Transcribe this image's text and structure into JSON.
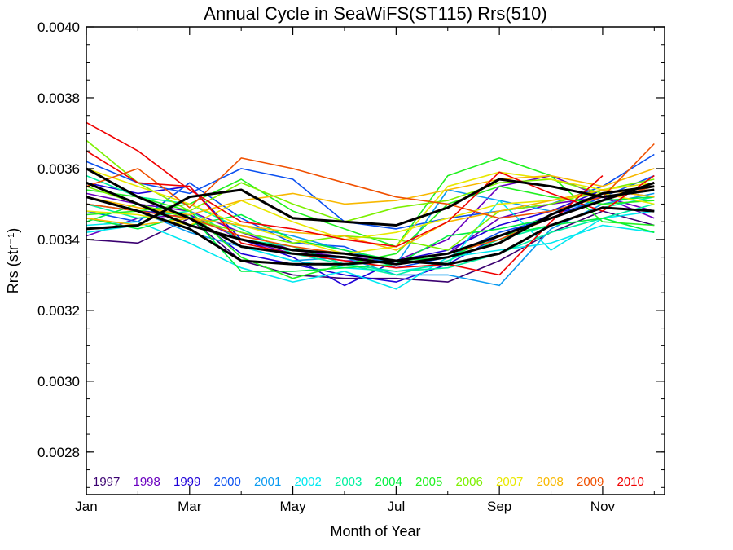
{
  "chart_data": {
    "type": "line",
    "title": "Annual Cycle in SeaWiFS(ST115) Rrs(510)",
    "xlabel": "Month of Year",
    "ylabel": "Rrs (str⁻¹)",
    "xlim": [
      1,
      12
    ],
    "ylim": [
      0.00268,
      0.004
    ],
    "x": [
      1,
      2,
      3,
      4,
      5,
      6,
      7,
      8,
      9,
      10,
      11,
      12
    ],
    "xticks": [
      {
        "value": 1,
        "label": "Jan"
      },
      {
        "value": 3,
        "label": "Mar"
      },
      {
        "value": 5,
        "label": "May"
      },
      {
        "value": 7,
        "label": "Jul"
      },
      {
        "value": 9,
        "label": "Sep"
      },
      {
        "value": 11,
        "label": "Nov"
      }
    ],
    "yticks": [
      {
        "value": 0.0028,
        "label": "0.0028"
      },
      {
        "value": 0.003,
        "label": "0.0030"
      },
      {
        "value": 0.0032,
        "label": "0.0032"
      },
      {
        "value": 0.0034,
        "label": "0.0034"
      },
      {
        "value": 0.0036,
        "label": "0.0036"
      },
      {
        "value": 0.0038,
        "label": "0.0038"
      },
      {
        "value": 0.004,
        "label": "0.0040"
      }
    ],
    "grid": false,
    "legend_position": "bottom",
    "series": [
      {
        "name": "1997",
        "color": "#3a0070",
        "lines": [
          [
            0.0034,
            0.00339,
            0.00346,
            0.00334,
            0.0033,
            0.00329,
            0.00329,
            0.00328,
            0.00334,
            0.00342,
            0.00348,
            0.00344
          ]
        ]
      },
      {
        "name": "1998",
        "color": "#6a00c0",
        "lines": [
          [
            0.00341,
            0.00346,
            0.00347,
            0.0034,
            0.00336,
            0.00334,
            0.00334,
            0.00336,
            0.00346,
            0.0035,
            0.00352,
            0.00346
          ],
          [
            0.00353,
            0.0035,
            0.00348,
            0.00342,
            0.00337,
            0.00335,
            0.00334,
            0.0034,
            0.00355,
            0.00358,
            0.00352,
            0.00348
          ]
        ]
      },
      {
        "name": "1999",
        "color": "#1e00d8",
        "lines": [
          [
            0.00356,
            0.00353,
            0.00355,
            0.0034,
            0.00335,
            0.00327,
            0.00334,
            0.00337,
            0.00344,
            0.00348,
            0.00354,
            0.00352
          ],
          [
            0.00352,
            0.00348,
            0.00347,
            0.00336,
            0.00333,
            0.0033,
            0.00328,
            0.00333,
            0.00341,
            0.00347,
            0.00351,
            0.00356
          ]
        ]
      },
      {
        "name": "2000",
        "color": "#0a50f0",
        "lines": [
          [
            0.00362,
            0.00356,
            0.00353,
            0.0036,
            0.00357,
            0.00345,
            0.00343,
            0.00346,
            0.00348,
            0.0035,
            0.00355,
            0.00364
          ],
          [
            0.00348,
            0.00345,
            0.00356,
            0.00346,
            0.00339,
            0.00338,
            0.00332,
            0.00335,
            0.00342,
            0.00346,
            0.00352,
            0.00358
          ]
        ]
      },
      {
        "name": "2001",
        "color": "#0a9af0",
        "lines": [
          [
            0.00356,
            0.0035,
            0.00346,
            0.00344,
            0.00341,
            0.00337,
            0.00333,
            0.00354,
            0.00351,
            0.00348,
            0.00351,
            0.00355
          ],
          [
            0.0035,
            0.00348,
            0.00342,
            0.00338,
            0.00334,
            0.00335,
            0.0033,
            0.0033,
            0.00327,
            0.00343,
            0.0035,
            0.00353
          ]
        ]
      },
      {
        "name": "2002",
        "color": "#00e8f0",
        "lines": [
          [
            0.00344,
            0.00345,
            0.00339,
            0.00332,
            0.00328,
            0.00331,
            0.00326,
            0.00335,
            0.00337,
            0.00339,
            0.00344,
            0.00342
          ],
          [
            0.00342,
            0.00344,
            0.00346,
            0.00338,
            0.00334,
            0.00332,
            0.00331,
            0.00333,
            0.00351,
            0.00337,
            0.00346,
            0.00348
          ]
        ]
      },
      {
        "name": "2003",
        "color": "#00f0a0",
        "lines": [
          [
            0.00358,
            0.00352,
            0.0035,
            0.00343,
            0.00336,
            0.00333,
            0.0033,
            0.00334,
            0.0034,
            0.00344,
            0.00349,
            0.00352
          ],
          [
            0.0035,
            0.00346,
            0.00348,
            0.0034,
            0.00338,
            0.00333,
            0.00331,
            0.00332,
            0.00336,
            0.00342,
            0.00346,
            0.0035
          ]
        ]
      },
      {
        "name": "2004",
        "color": "#00f040",
        "lines": [
          [
            0.00346,
            0.00343,
            0.00347,
            0.00331,
            0.00331,
            0.00332,
            0.00333,
            0.00341,
            0.00343,
            0.00346,
            0.00351,
            0.00352
          ],
          [
            0.00345,
            0.0035,
            0.00344,
            0.00347,
            0.0034,
            0.00337,
            0.00334,
            0.00335,
            0.00341,
            0.00344,
            0.00346,
            0.00342
          ]
        ]
      },
      {
        "name": "2005",
        "color": "#20f020",
        "lines": [
          [
            0.00347,
            0.00348,
            0.0035,
            0.00357,
            0.00348,
            0.00343,
            0.00338,
            0.00358,
            0.00363,
            0.00358,
            0.00345,
            0.00344
          ],
          [
            0.00354,
            0.00352,
            0.00348,
            0.00335,
            0.00329,
            0.00333,
            0.00336,
            0.0035,
            0.00355,
            0.00352,
            0.0035,
            0.00351
          ]
        ]
      },
      {
        "name": "2006",
        "color": "#7cf000",
        "lines": [
          [
            0.00368,
            0.00356,
            0.00348,
            0.00356,
            0.0035,
            0.00345,
            0.00349,
            0.00351,
            0.00356,
            0.00357,
            0.00353,
            0.00355
          ],
          [
            0.00355,
            0.0035,
            0.00346,
            0.00342,
            0.00339,
            0.00341,
            0.0034,
            0.00337,
            0.00348,
            0.0035,
            0.00354,
            0.00357
          ]
        ]
      },
      {
        "name": "2007",
        "color": "#e8e800",
        "lines": [
          [
            0.0036,
            0.00355,
            0.0035,
            0.00344,
            0.0034,
            0.00336,
            0.00338,
            0.00355,
            0.00359,
            0.00357,
            0.00354,
            0.00356
          ],
          [
            0.00348,
            0.00347,
            0.00344,
            0.00351,
            0.00345,
            0.0034,
            0.00342,
            0.00346,
            0.0035,
            0.00351,
            0.00353,
            0.0035
          ]
        ]
      },
      {
        "name": "2008",
        "color": "#f8b800",
        "lines": [
          [
            0.00352,
            0.00349,
            0.00347,
            0.00351,
            0.00353,
            0.0035,
            0.00351,
            0.00354,
            0.00357,
            0.00358,
            0.00355,
            0.0036
          ],
          [
            0.00346,
            0.00344,
            0.00346,
            0.00344,
            0.00342,
            0.00341,
            0.00337,
            0.00345,
            0.00348,
            0.00351,
            0.00354,
            0.00352
          ]
        ]
      },
      {
        "name": "2009",
        "color": "#f05000",
        "lines": [
          [
            0.00355,
            0.0036,
            0.00349,
            0.00363,
            0.0036,
            0.00356,
            0.00352,
            0.0035,
            0.00346,
            0.00348,
            0.00352,
            0.00367
          ],
          [
            0.0035,
            0.00348,
            0.00346,
            0.00341,
            0.00338,
            0.00336,
            0.00334,
            0.00336,
            0.0034,
            0.00346,
            0.00351,
            0.00355
          ]
        ]
      },
      {
        "name": "2010",
        "color": "#f00000",
        "lines": [
          [
            0.00373,
            0.00365,
            0.00354,
            0.00345,
            0.00343,
            0.0034,
            0.00338,
            0.00345,
            0.00359,
            0.00353,
            0.00348,
            0.00358
          ],
          [
            0.00365,
            0.00356,
            0.00355,
            0.00339,
            0.00336,
            0.00334,
            0.00332,
            0.00333,
            0.0033,
            0.00345,
            0.00358,
            null
          ]
        ]
      },
      {
        "name": "",
        "color": "#000000",
        "width": 3,
        "lines": [
          [
            0.00343,
            0.00344,
            0.00352,
            0.00354,
            0.00346,
            0.00345,
            0.00344,
            0.00349,
            0.00357,
            0.00355,
            0.00352,
            0.00354
          ],
          [
            0.00356,
            0.0035,
            0.00344,
            0.0034,
            0.00337,
            0.00336,
            0.00334,
            0.00336,
            0.00341,
            0.00346,
            0.00351,
            0.00356
          ],
          [
            0.0036,
            0.00352,
            0.00346,
            0.00338,
            0.00336,
            0.00335,
            0.00333,
            0.00335,
            0.00339,
            0.00347,
            0.00353,
            0.00355
          ],
          [
            0.00352,
            0.00348,
            0.00343,
            0.00334,
            0.00333,
            0.00333,
            0.00334,
            0.00333,
            0.00336,
            0.00344,
            0.00349,
            0.00348
          ]
        ]
      }
    ]
  }
}
